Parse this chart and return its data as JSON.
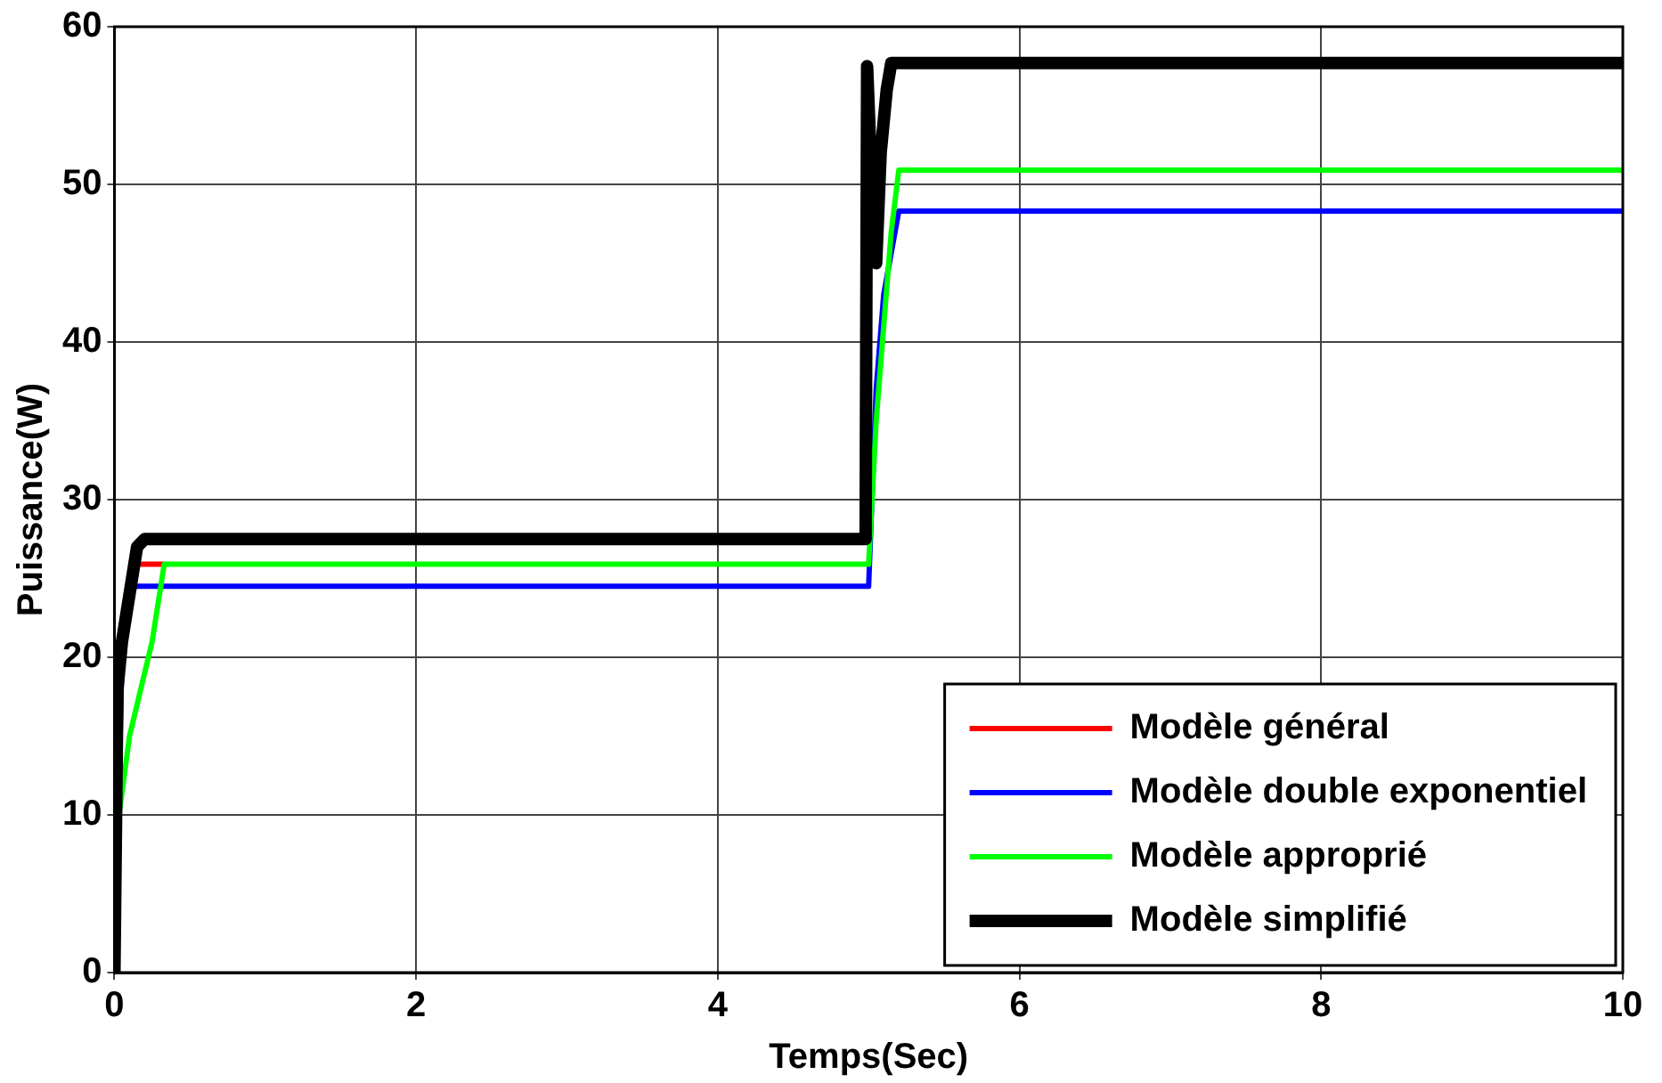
{
  "chart_data": {
    "type": "line",
    "xlabel": "Temps(Sec)",
    "ylabel": "Puissance(W)",
    "xlim": [
      0,
      10
    ],
    "xticks": [
      0,
      2,
      4,
      6,
      8,
      10
    ],
    "ylim": [
      0,
      60
    ],
    "yticks": [
      0,
      10,
      20,
      30,
      40,
      50,
      60
    ],
    "grid": true,
    "legend": "bottom right",
    "marker": "none",
    "line_style": "solid",
    "series": [
      {
        "name": "Modèle général",
        "color": "#ff0000",
        "x": [
          0.12,
          0.33
        ],
        "values": [
          25.9,
          25.9
        ]
      },
      {
        "name": "Modèle double exponentiel",
        "color": "#0000ff",
        "x": [
          0,
          0.05,
          0.1,
          5,
          5.05,
          5.1,
          5.2,
          10
        ],
        "values": [
          0,
          20,
          24.5,
          24.5,
          37,
          43,
          48.3,
          48.3
        ]
      },
      {
        "name": "Modèle approprié",
        "color": "#00ff00",
        "x": [
          0.03,
          0.1,
          0.2,
          0.25,
          0.33,
          5,
          5.05,
          5.15,
          5.2,
          10
        ],
        "values": [
          10,
          15,
          19,
          21,
          25.9,
          25.9,
          35,
          47,
          50.9,
          50.9
        ]
      },
      {
        "name": "Modèle simplifié",
        "color": "#000000",
        "x": [
          0,
          0.02,
          0.05,
          0.1,
          0.15,
          0.2,
          4.98,
          4.99,
          5.02,
          5.05,
          5.08,
          5.12,
          5.15,
          10
        ],
        "values": [
          0,
          18,
          21,
          24,
          27,
          27.5,
          27.5,
          57.5,
          50,
          45,
          52,
          56,
          57.7,
          57.7
        ]
      }
    ]
  }
}
